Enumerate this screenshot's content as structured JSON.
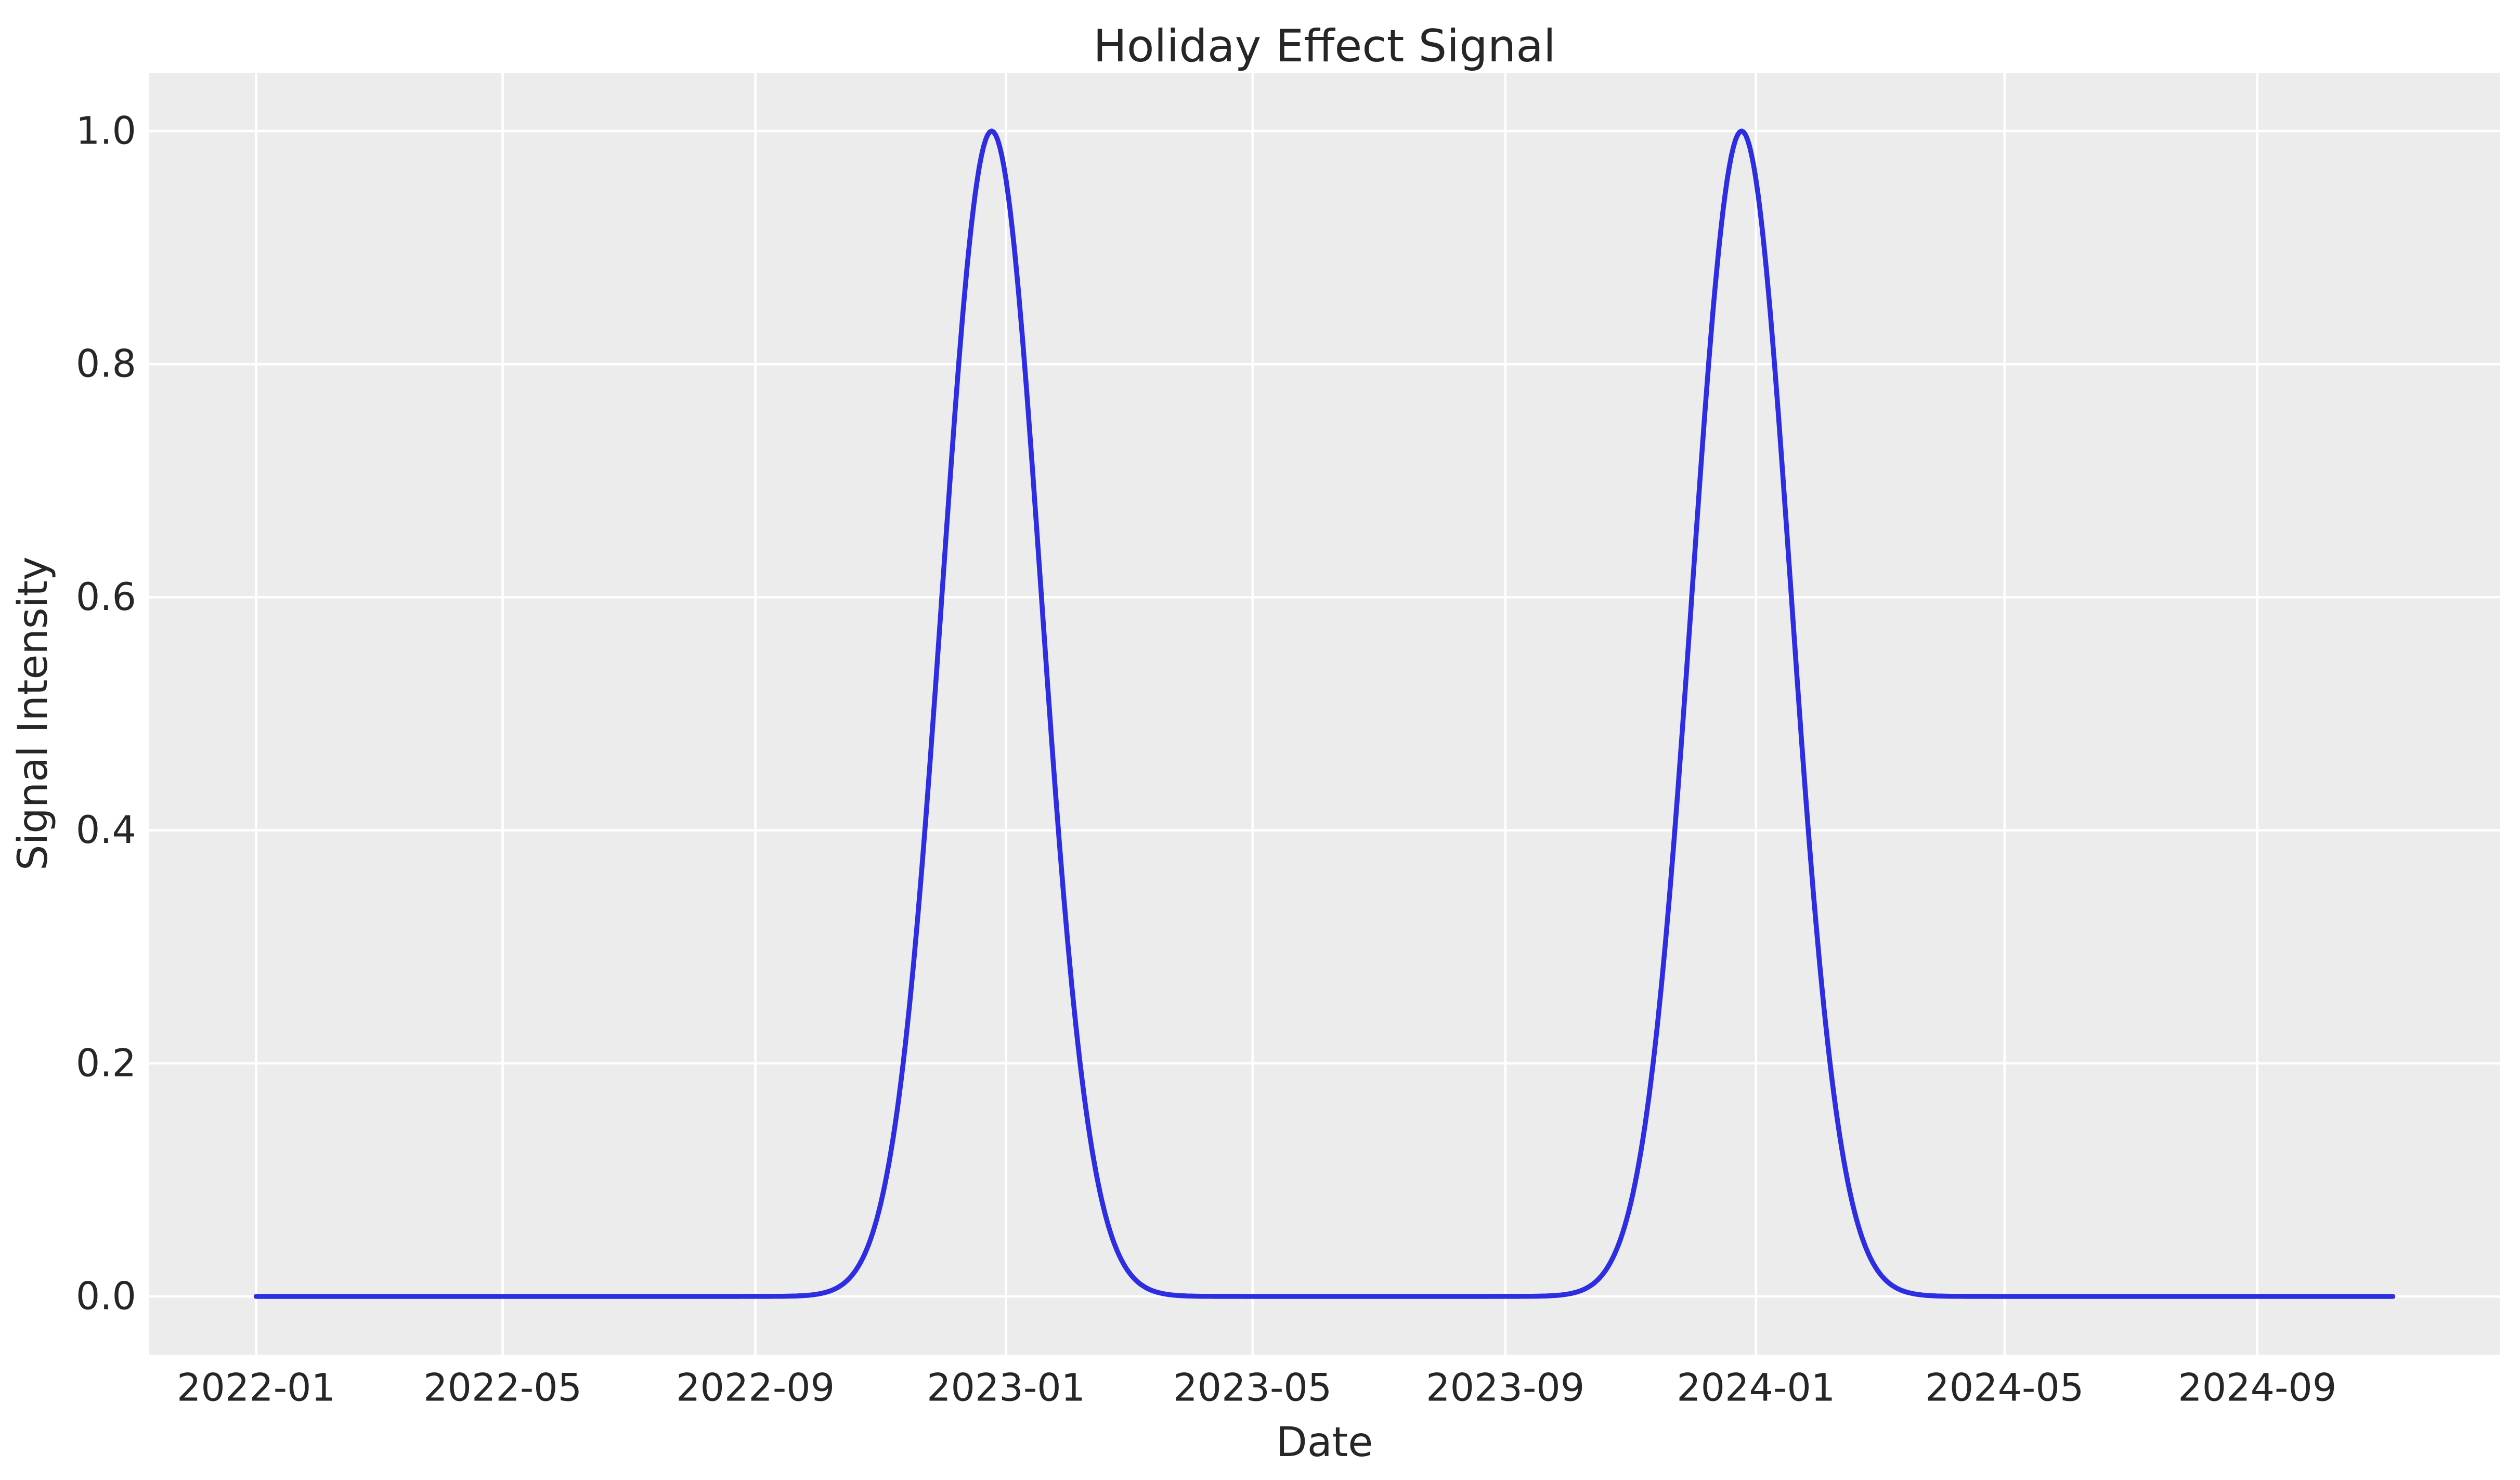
{
  "figure": {
    "title": "Holiday Effect Signal",
    "x_axis_label": "Date",
    "y_axis_label": "Signal Intensity",
    "colors": {
      "figure_background": "#ffffff",
      "plot_background": "#ececec",
      "gridline": "#ffffff",
      "text": "#262626",
      "line": "#2d2de1"
    }
  },
  "chart_data": {
    "type": "line",
    "title": "Holiday Effect Signal",
    "xlabel": "Date",
    "ylabel": "Signal Intensity",
    "grid": true,
    "legend": false,
    "xlim": [
      "2021-11-10",
      "2024-12-28"
    ],
    "ylim": [
      -0.05,
      1.05
    ],
    "x_ticks": [
      {
        "date": "2022-01-01",
        "label": "2022-01"
      },
      {
        "date": "2022-05-01",
        "label": "2022-05"
      },
      {
        "date": "2022-09-01",
        "label": "2022-09"
      },
      {
        "date": "2023-01-01",
        "label": "2023-01"
      },
      {
        "date": "2023-05-01",
        "label": "2023-05"
      },
      {
        "date": "2023-09-01",
        "label": "2023-09"
      },
      {
        "date": "2024-01-01",
        "label": "2024-01"
      },
      {
        "date": "2024-05-01",
        "label": "2024-05"
      },
      {
        "date": "2024-09-01",
        "label": "2024-09"
      }
    ],
    "y_ticks": [
      {
        "value": 0.0,
        "label": "0.0"
      },
      {
        "value": 0.2,
        "label": "0.2"
      },
      {
        "value": 0.4,
        "label": "0.4"
      },
      {
        "value": 0.6,
        "label": "0.6"
      },
      {
        "value": 0.8,
        "label": "0.8"
      },
      {
        "value": 1.0,
        "label": "1.0"
      }
    ],
    "series": [
      {
        "name": "holiday_effect_signal",
        "color": "#2d2de1",
        "x_start": "2022-01-01",
        "x_end": "2024-11-06",
        "sampling": "daily",
        "model": {
          "kind": "sum_of_gaussians",
          "baseline": 0.0,
          "amplitude": 1.0,
          "sigma_days": 24,
          "peak_dates": [
            "2022-12-25",
            "2023-12-25"
          ]
        },
        "anchor_points": [
          {
            "date": "2022-01-01",
            "value": 0.0
          },
          {
            "date": "2022-02-01",
            "value": 0.0
          },
          {
            "date": "2022-03-01",
            "value": 0.0
          },
          {
            "date": "2022-04-01",
            "value": 0.0
          },
          {
            "date": "2022-05-01",
            "value": 0.0
          },
          {
            "date": "2022-06-01",
            "value": 0.0
          },
          {
            "date": "2022-07-01",
            "value": 0.0
          },
          {
            "date": "2022-08-01",
            "value": 0.0
          },
          {
            "date": "2022-09-01",
            "value": 0.0
          },
          {
            "date": "2022-10-01",
            "value": 0.0019
          },
          {
            "date": "2022-11-01",
            "value": 0.0795
          },
          {
            "date": "2022-12-01",
            "value": 0.6065
          },
          {
            "date": "2022-12-25",
            "value": 1.0
          },
          {
            "date": "2023-01-01",
            "value": 0.9584
          },
          {
            "date": "2023-02-01",
            "value": 0.2855
          },
          {
            "date": "2023-03-01",
            "value": 0.0228
          },
          {
            "date": "2023-04-01",
            "value": 0.0003
          },
          {
            "date": "2023-05-01",
            "value": 0.0
          },
          {
            "date": "2023-06-01",
            "value": 0.0
          },
          {
            "date": "2023-07-01",
            "value": 0.0
          },
          {
            "date": "2023-08-01",
            "value": 0.0
          },
          {
            "date": "2023-09-01",
            "value": 0.0
          },
          {
            "date": "2023-10-01",
            "value": 0.0019
          },
          {
            "date": "2023-11-01",
            "value": 0.0795
          },
          {
            "date": "2023-12-01",
            "value": 0.6065
          },
          {
            "date": "2023-12-25",
            "value": 1.0
          },
          {
            "date": "2024-01-01",
            "value": 0.9584
          },
          {
            "date": "2024-02-01",
            "value": 0.2855
          },
          {
            "date": "2024-03-01",
            "value": 0.0203
          },
          {
            "date": "2024-04-01",
            "value": 0.0002
          },
          {
            "date": "2024-05-01",
            "value": 0.0
          },
          {
            "date": "2024-06-01",
            "value": 0.0
          },
          {
            "date": "2024-07-01",
            "value": 0.0
          },
          {
            "date": "2024-08-01",
            "value": 0.0
          },
          {
            "date": "2024-09-01",
            "value": 0.0
          },
          {
            "date": "2024-10-01",
            "value": 0.0
          },
          {
            "date": "2024-11-06",
            "value": 0.0
          }
        ]
      }
    ]
  }
}
